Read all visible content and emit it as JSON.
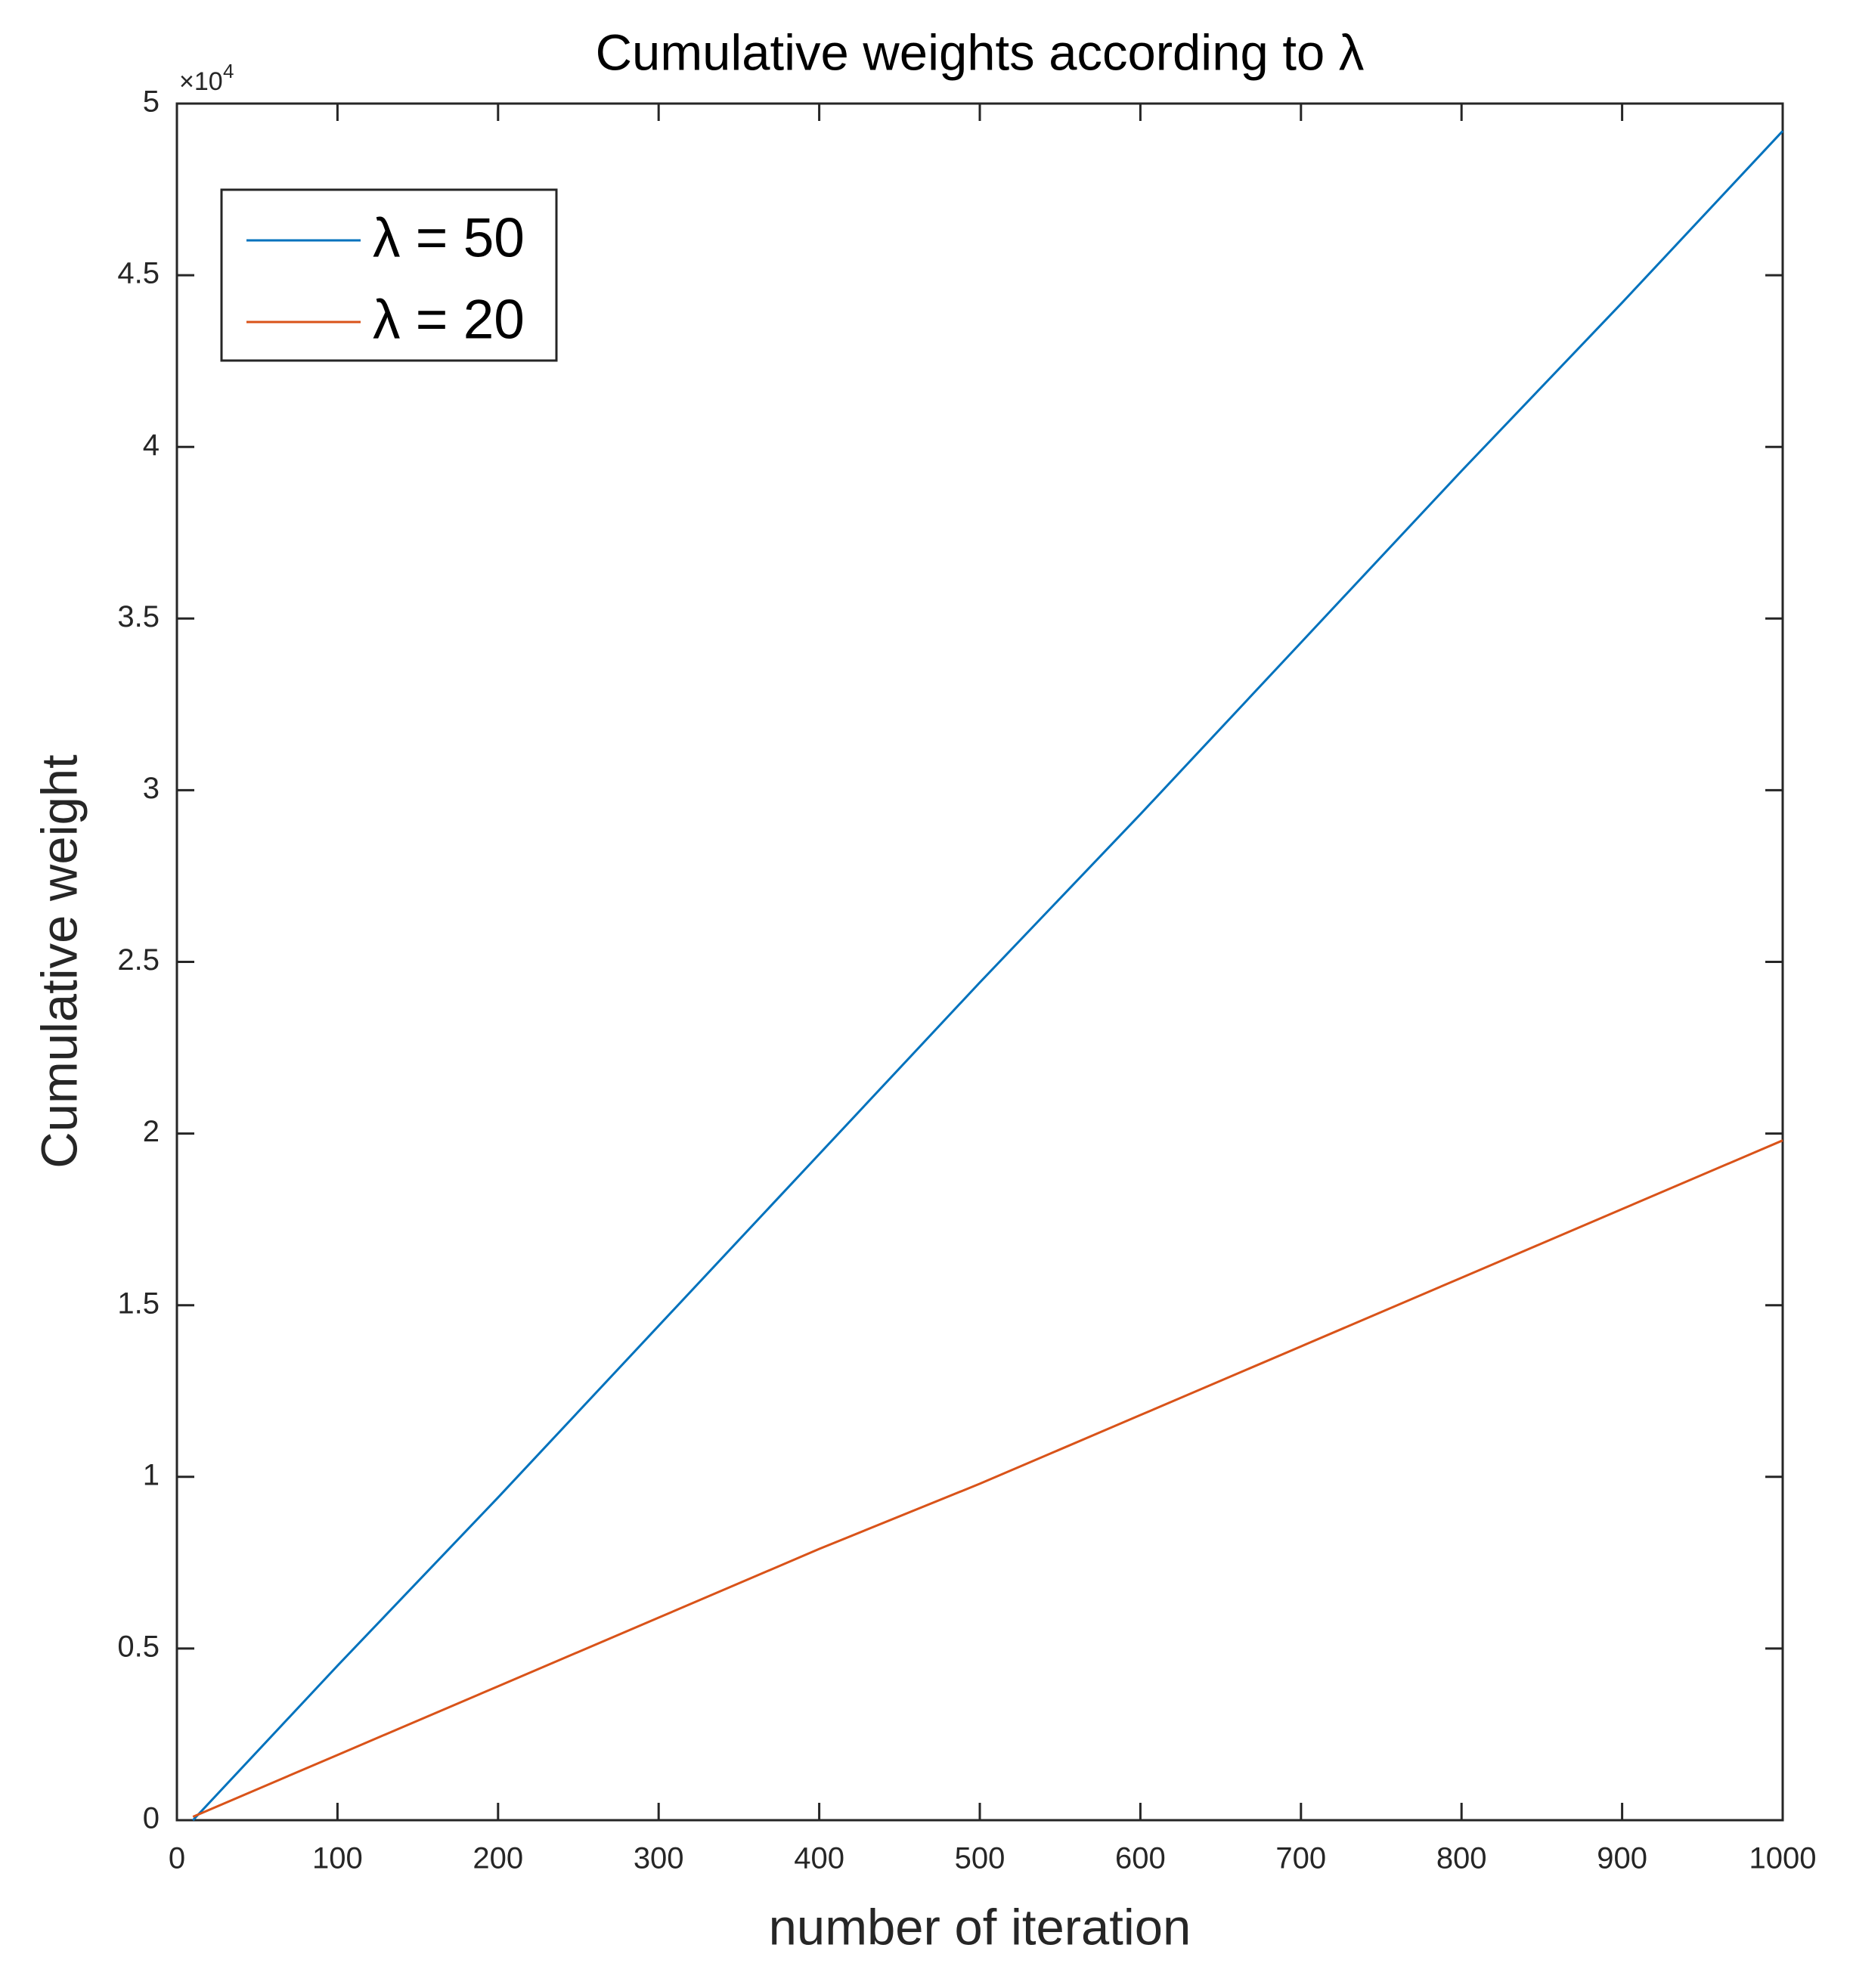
{
  "chart_data": {
    "type": "line",
    "title": "Cumulative weights according to λ",
    "x_label": "number of iteration",
    "y_label": "Cumulative weight",
    "y_multiplier": {
      "base": "×10",
      "exponent": "4"
    },
    "x": [
      10,
      100,
      200,
      300,
      400,
      500,
      600,
      700,
      800,
      900,
      1000
    ],
    "series": [
      {
        "name": "λ = 50",
        "color": "#0072BD",
        "values": [
          0,
          4500,
          9400,
          14400,
          19400,
          24400,
          29300,
          34300,
          39300,
          44200,
          49200
        ]
      },
      {
        "name": "λ = 20",
        "color": "#D95319",
        "values": [
          100,
          1900,
          3900,
          5900,
          7900,
          9800,
          11800,
          13800,
          15800,
          17800,
          19800
        ]
      }
    ],
    "xlim": [
      0,
      1000
    ],
    "xticks": [
      0,
      100,
      200,
      300,
      400,
      500,
      600,
      700,
      800,
      900,
      1000
    ],
    "ylim": [
      0,
      50000
    ],
    "yticks": [
      {
        "value": 0,
        "label": "0"
      },
      {
        "value": 5000,
        "label": "0.5"
      },
      {
        "value": 10000,
        "label": "1"
      },
      {
        "value": 15000,
        "label": "1.5"
      },
      {
        "value": 20000,
        "label": "2"
      },
      {
        "value": 25000,
        "label": "2.5"
      },
      {
        "value": 30000,
        "label": "3"
      },
      {
        "value": 35000,
        "label": "3.5"
      },
      {
        "value": 40000,
        "label": "4"
      },
      {
        "value": 45000,
        "label": "4.5"
      },
      {
        "value": 50000,
        "label": "5"
      }
    ],
    "grid": false,
    "legend": "upper-left"
  }
}
